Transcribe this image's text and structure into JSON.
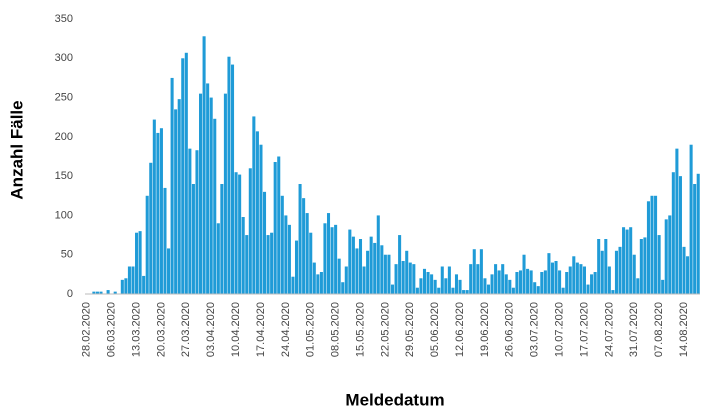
{
  "chart_data": {
    "type": "bar",
    "y_label": "Anzahl Fälle",
    "x_label": "Meldedatum",
    "color": "#1f9bd7",
    "ylim": [
      0,
      350
    ],
    "yticks": [
      0,
      50,
      100,
      150,
      200,
      250,
      300,
      350
    ],
    "categories": [
      "28.02.2020",
      null,
      null,
      null,
      null,
      null,
      null,
      "06.03.2020",
      null,
      null,
      null,
      null,
      null,
      null,
      "13.03.2020",
      null,
      null,
      null,
      null,
      null,
      null,
      "20.03.2020",
      null,
      null,
      null,
      null,
      null,
      null,
      "27.03.2020",
      null,
      null,
      null,
      null,
      null,
      null,
      "03.04.2020",
      null,
      null,
      null,
      null,
      null,
      null,
      "10.04.2020",
      null,
      null,
      null,
      null,
      null,
      null,
      "17.04.2020",
      null,
      null,
      null,
      null,
      null,
      null,
      "24.04.2020",
      null,
      null,
      null,
      null,
      null,
      null,
      "01.05.2020",
      null,
      null,
      null,
      null,
      null,
      null,
      "08.05.2020",
      null,
      null,
      null,
      null,
      null,
      null,
      "15.05.2020",
      null,
      null,
      null,
      null,
      null,
      null,
      "22.05.2020",
      null,
      null,
      null,
      null,
      null,
      null,
      "29.05.2020",
      null,
      null,
      null,
      null,
      null,
      null,
      "05.06.2020",
      null,
      null,
      null,
      null,
      null,
      null,
      "12.06.2020",
      null,
      null,
      null,
      null,
      null,
      null,
      "19.06.2020",
      null,
      null,
      null,
      null,
      null,
      null,
      "26.06.2020",
      null,
      null,
      null,
      null,
      null,
      null,
      "03.07.2020",
      null,
      null,
      null,
      null,
      null,
      null,
      "10.07.2020",
      null,
      null,
      null,
      null,
      null,
      null,
      "17.07.2020",
      null,
      null,
      null,
      null,
      null,
      null,
      "24.07.2020",
      null,
      null,
      null,
      null,
      null,
      null,
      "31.07.2020",
      null,
      null,
      null,
      null,
      null,
      null,
      "07.08.2020",
      null,
      null,
      null,
      null,
      null,
      null,
      "14.08.2020",
      null,
      null,
      null,
      null
    ],
    "values": [
      0,
      0,
      3,
      3,
      3,
      0,
      5,
      0,
      3,
      0,
      18,
      20,
      35,
      35,
      78,
      80,
      23,
      125,
      167,
      222,
      205,
      211,
      135,
      58,
      275,
      235,
      248,
      300,
      307,
      185,
      140,
      183,
      255,
      328,
      268,
      250,
      223,
      90,
      140,
      255,
      302,
      292,
      155,
      152,
      98,
      75,
      160,
      226,
      207,
      190,
      130,
      75,
      78,
      168,
      175,
      125,
      100,
      88,
      22,
      68,
      140,
      122,
      103,
      78,
      40,
      25,
      28,
      90,
      103,
      85,
      88,
      45,
      15,
      35,
      82,
      73,
      58,
      70,
      35,
      55,
      73,
      65,
      100,
      62,
      50,
      50,
      12,
      38,
      75,
      42,
      55,
      40,
      38,
      8,
      20,
      32,
      28,
      25,
      18,
      8,
      35,
      20,
      35,
      8,
      25,
      18,
      5,
      5,
      38,
      57,
      38,
      57,
      20,
      12,
      25,
      38,
      30,
      38,
      25,
      18,
      8,
      28,
      30,
      50,
      32,
      30,
      15,
      10,
      28,
      30,
      52,
      40,
      42,
      30,
      8,
      28,
      35,
      48,
      40,
      38,
      35,
      12,
      25,
      28,
      70,
      55,
      70,
      35,
      5,
      55,
      60,
      85,
      82,
      85,
      50,
      20,
      70,
      72,
      118,
      125,
      125,
      75,
      18,
      95,
      100,
      155,
      185,
      150,
      60,
      48,
      190,
      140,
      153
    ]
  }
}
